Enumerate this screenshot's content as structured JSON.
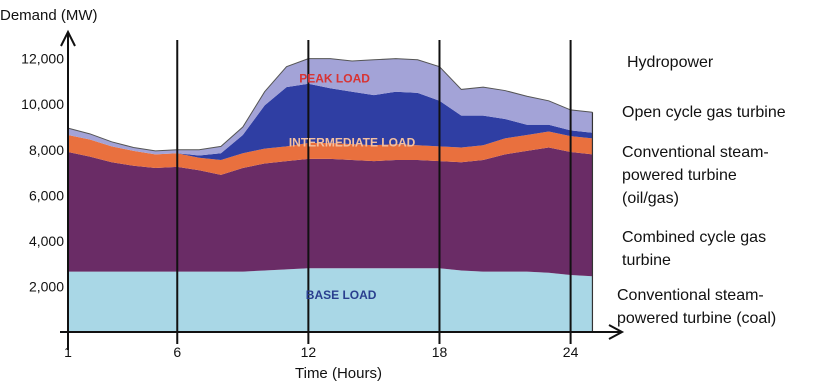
{
  "chart_data": {
    "type": "area",
    "title": "",
    "ylabel": "Demand (MW)",
    "xlabel": "Time (Hours)",
    "xlim": [
      1,
      25.3
    ],
    "ylim": [
      0,
      12600
    ],
    "x_ticks": [
      1,
      6,
      12,
      18,
      24
    ],
    "x_tick_labels": [
      "1",
      "6",
      "12",
      "18",
      "24"
    ],
    "y_ticks": [
      2000,
      4000,
      6000,
      8000,
      10000,
      12000
    ],
    "y_tick_labels": [
      "2,000",
      "4,000",
      "6,000",
      "8,000",
      "10,000",
      "12,000"
    ],
    "x": [
      1,
      2,
      3,
      4,
      5,
      6,
      7,
      8,
      9,
      10,
      11,
      12,
      13,
      14,
      15,
      16,
      17,
      18,
      19,
      20,
      21,
      22,
      23,
      24,
      25
    ],
    "series": [
      {
        "name": "Conventional steam-powered turbine (coal)",
        "color": "#a9d7e6",
        "values": [
          2650,
          2650,
          2650,
          2650,
          2650,
          2650,
          2650,
          2650,
          2650,
          2700,
          2750,
          2800,
          2800,
          2800,
          2800,
          2800,
          2800,
          2800,
          2700,
          2650,
          2650,
          2650,
          2600,
          2500,
          2450
        ]
      },
      {
        "name": "Combined cycle gas turbine",
        "color": "#6a2c66",
        "values": [
          5250,
          5050,
          4800,
          4650,
          4550,
          4600,
          4450,
          4250,
          4550,
          4700,
          4750,
          4800,
          4800,
          4750,
          4700,
          4750,
          4750,
          4700,
          4750,
          4900,
          5150,
          5300,
          5500,
          5400,
          5350
        ]
      },
      {
        "name": "Conventional steam-powered turbine (oil/gas)",
        "color": "#e9703e",
        "values": [
          750,
          750,
          700,
          650,
          600,
          600,
          550,
          650,
          650,
          650,
          650,
          700,
          700,
          700,
          700,
          700,
          650,
          650,
          650,
          650,
          700,
          700,
          700,
          700,
          700
        ]
      },
      {
        "name": "Open cycle gas turbine",
        "color": "#2f3ea3",
        "values": [
          0,
          0,
          0,
          0,
          0,
          0,
          100,
          300,
          800,
          1900,
          2600,
          2600,
          2400,
          2300,
          2200,
          2300,
          2300,
          2000,
          1400,
          1300,
          850,
          450,
          300,
          250,
          250
        ]
      },
      {
        "name": "Hydropower",
        "color": "#a3a3d7",
        "values": [
          300,
          250,
          200,
          150,
          150,
          150,
          250,
          300,
          350,
          600,
          900,
          1100,
          1300,
          1350,
          1550,
          1450,
          1450,
          1500,
          1150,
          1250,
          1250,
          1250,
          1050,
          900,
          900
        ]
      }
    ],
    "legend_labels": [
      {
        "lines": [
          "Hydropower"
        ]
      },
      {
        "lines": [
          "Open cycle gas turbine"
        ]
      },
      {
        "lines": [
          "Conventional steam-",
          "powered turbine",
          "(oil/gas)"
        ]
      },
      {
        "lines": [
          "Combined cycle gas",
          "turbine"
        ]
      },
      {
        "lines": [
          "Conventional steam-",
          "powered turbine (coal)"
        ]
      }
    ],
    "annotations": [
      {
        "text": "PEAK LOAD",
        "x": 13.2,
        "y": 10950,
        "color": "#d83333"
      },
      {
        "text": "INTERMEDIATE LOAD",
        "x": 14.0,
        "y": 8150,
        "color": "#f3c0a0"
      },
      {
        "text": "BASE LOAD",
        "x": 13.5,
        "y": 1450,
        "color": "#2a3f8f"
      }
    ],
    "vertical_lines_at": [
      6,
      12,
      18,
      24
    ],
    "legend_position": "right"
  }
}
